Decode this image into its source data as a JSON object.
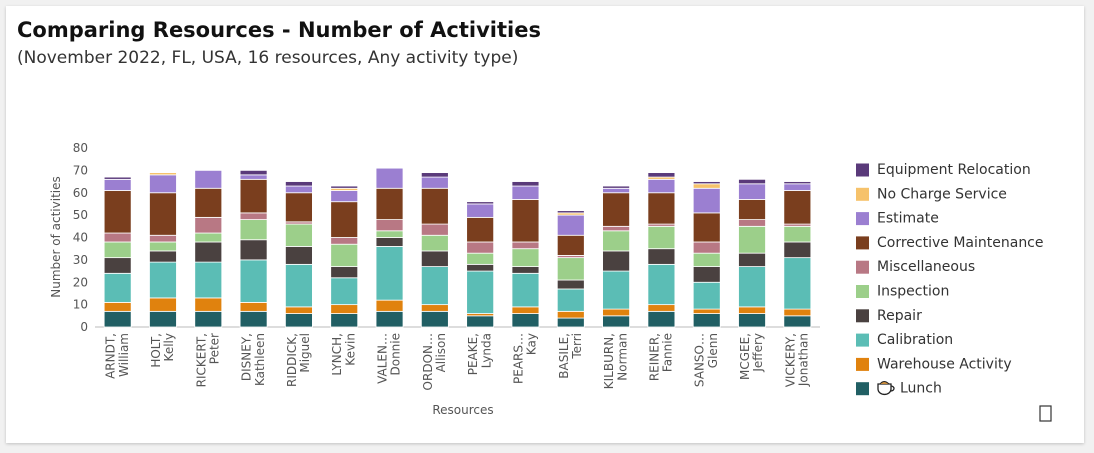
{
  "chart_data": {
    "type": "stacked-bar",
    "title": "Comparing Resources - Number of Activities",
    "subtitle": "(November 2022, FL, USA, 16 resources, Any activity type)",
    "x_label": "Resources",
    "y_label": "Number of activities",
    "ylim": [
      0,
      80
    ],
    "yticks": [
      0,
      10,
      20,
      30,
      40,
      50,
      60,
      70,
      80
    ],
    "grid": false,
    "legend": "right",
    "categories": [
      "ARNDT,\nWilliam",
      "HOLT,\nKelly",
      "RICKERT,\nPeter",
      "DISNEY,\nKathleen",
      "RIDDICK,\nMiguel",
      "LYNCH,\nKevin",
      "VALEN…\nDonnie",
      "ORDON…\nAllison",
      "PEAKE,\nLynda",
      "PEARS…\nKay",
      "BASILE,\nTerri",
      "KILBURN,\nNorman",
      "REINER,\nFannie",
      "SANSO…\nGlenn",
      "MCGEE,\nJeffery",
      "VICKERY,\nJonathan"
    ],
    "series": [
      {
        "name": "Lunch",
        "color": "#215f64",
        "values": [
          7,
          7,
          7,
          7,
          6,
          6,
          7,
          7,
          5,
          6,
          4,
          5,
          7,
          6,
          6,
          5
        ]
      },
      {
        "name": "Warehouse Activity",
        "color": "#e0820e",
        "values": [
          4,
          6,
          6,
          4,
          3,
          4,
          5,
          3,
          1,
          3,
          3,
          3,
          3,
          2,
          3,
          3
        ]
      },
      {
        "name": "Calibration",
        "color": "#5bbdb5",
        "values": [
          13,
          16,
          16,
          19,
          19,
          12,
          24,
          17,
          19,
          15,
          10,
          17,
          18,
          12,
          18,
          23
        ]
      },
      {
        "name": "Repair",
        "color": "#4a4140",
        "values": [
          7,
          5,
          9,
          9,
          8,
          5,
          4,
          7,
          3,
          3,
          4,
          9,
          7,
          7,
          6,
          7
        ]
      },
      {
        "name": "Inspection",
        "color": "#9ccf8a",
        "values": [
          7,
          4,
          4,
          9,
          10,
          10,
          3,
          7,
          5,
          8,
          10,
          9,
          10,
          6,
          12,
          7
        ]
      },
      {
        "name": "Miscellaneous",
        "color": "#b87884",
        "values": [
          4,
          3,
          7,
          3,
          1,
          3,
          5,
          5,
          5,
          3,
          1,
          2,
          1,
          5,
          3,
          1
        ]
      },
      {
        "name": "Corrective Maintenance",
        "color": "#7a3e1e",
        "values": [
          19,
          19,
          13,
          15,
          13,
          16,
          14,
          16,
          11,
          19,
          9,
          15,
          14,
          13,
          9,
          15
        ]
      },
      {
        "name": "Estimate",
        "color": "#9b7fd1",
        "values": [
          5,
          8,
          8,
          2,
          3,
          5,
          9,
          5,
          6,
          6,
          9,
          2,
          6,
          11,
          7,
          3
        ]
      },
      {
        "name": "No Charge Service",
        "color": "#f6c26b",
        "values": [
          0,
          1,
          0,
          0,
          0,
          1,
          0,
          0,
          0,
          0,
          1,
          0,
          1,
          2,
          0,
          0
        ]
      },
      {
        "name": "Equipment Relocation",
        "color": "#5a3a7a",
        "values": [
          1,
          0,
          0,
          2,
          2,
          1,
          0,
          2,
          1,
          2,
          1,
          1,
          2,
          1,
          2,
          1
        ]
      }
    ]
  }
}
